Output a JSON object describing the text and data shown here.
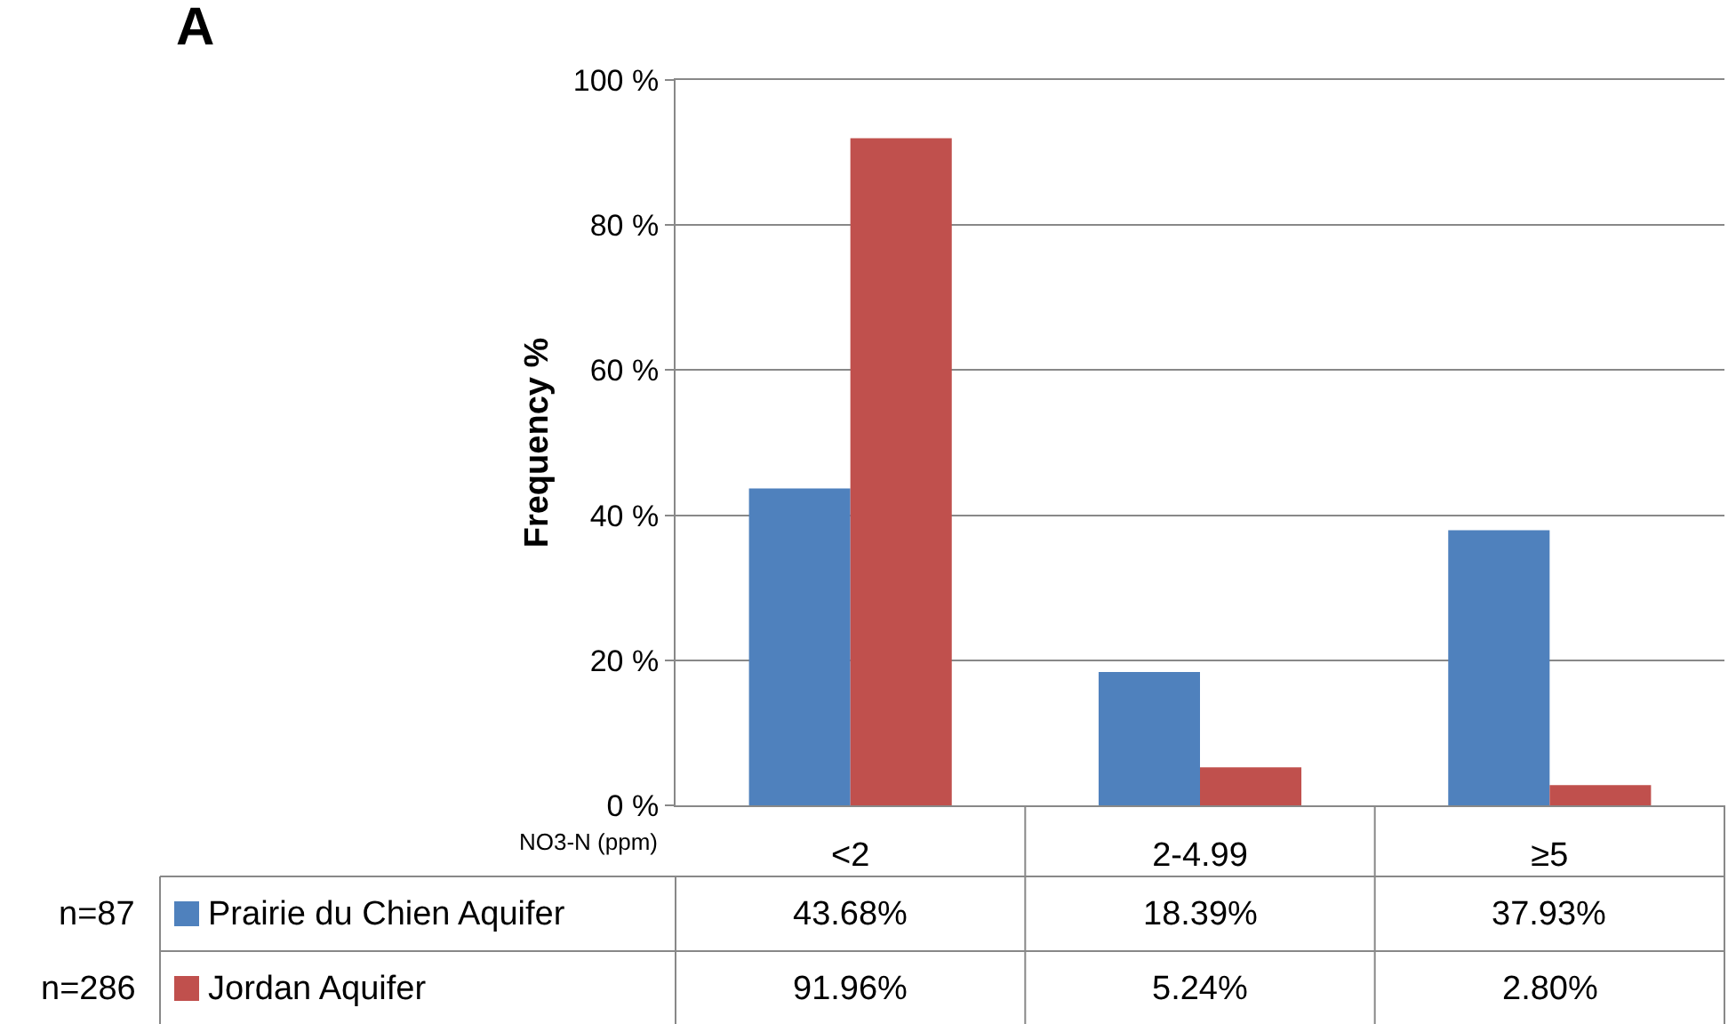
{
  "chart_data": {
    "type": "bar",
    "ylabel": "Frequency %",
    "categories": [
      "<2",
      "2-4.99",
      "≥5"
    ],
    "series": [
      {
        "name": "Prairie du Chien Aquifer",
        "color": "#4f81bd",
        "values": [
          43.68,
          18.39,
          37.93
        ],
        "value_labels": [
          "43.68%",
          "18.39%",
          "37.93%"
        ]
      },
      {
        "name": "Jordan Aquifer",
        "color": "#c0504d",
        "values": [
          91.96,
          5.24,
          2.8
        ],
        "value_labels": [
          "91.96%",
          "5.24%",
          "2.80%"
        ]
      }
    ],
    "ylim": [
      0,
      100
    ],
    "yticks": [
      {
        "value": 0,
        "label": "0 %"
      },
      {
        "value": 20,
        "label": "20 %"
      },
      {
        "value": 40,
        "label": "40 %"
      },
      {
        "value": 60,
        "label": "60 %"
      },
      {
        "value": 80,
        "label": "80 %"
      },
      {
        "value": 100,
        "label": "100 %"
      }
    ],
    "grid": "y",
    "legend": "bottom left",
    "annotations": [
      "A",
      "NO3-N (ppm)",
      "n=87",
      "n=286"
    ]
  }
}
